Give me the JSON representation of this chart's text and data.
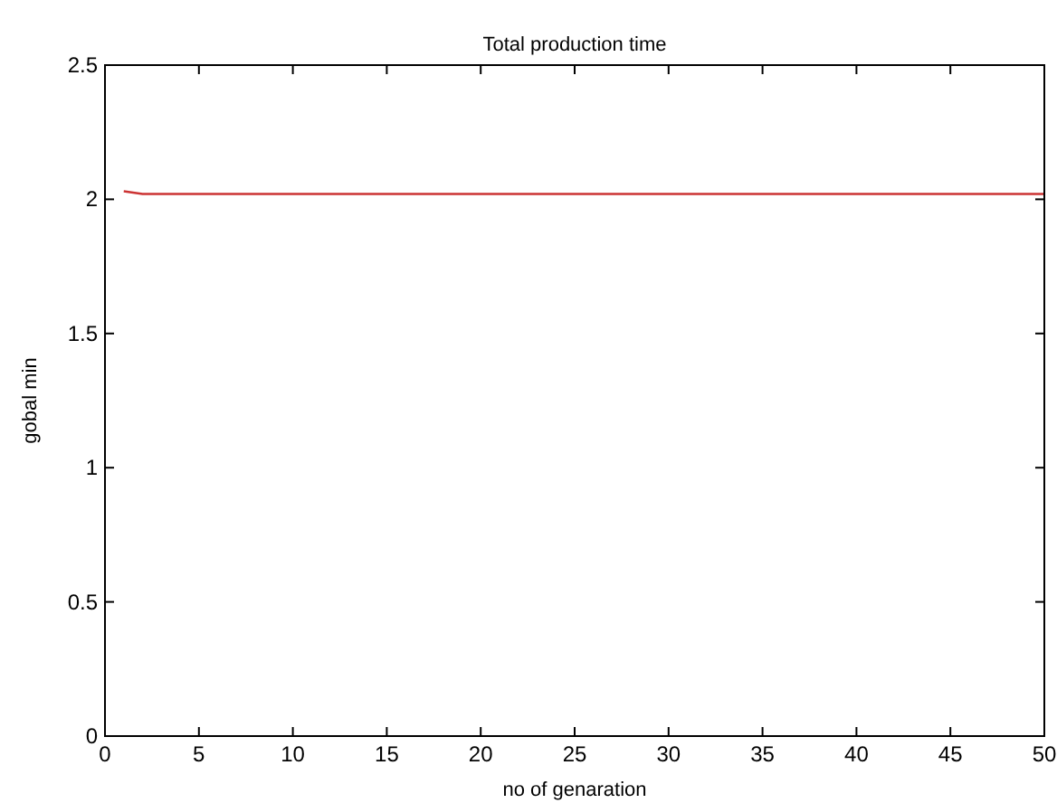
{
  "chart_data": {
    "type": "line",
    "title": "Total production time",
    "xlabel": "no of genaration",
    "ylabel": "gobal min",
    "series": [
      {
        "color": "#cc3333",
        "x": [
          1,
          2,
          50
        ],
        "values": [
          2.03,
          2.02,
          2.02
        ]
      }
    ],
    "xlim": [
      0,
      50
    ],
    "xticks": [
      0,
      5,
      10,
      15,
      20,
      25,
      30,
      35,
      40,
      45,
      50
    ],
    "ylim": [
      0,
      2.5
    ],
    "yticks": [
      0,
      0.5,
      1,
      1.5,
      2,
      2.5
    ]
  }
}
